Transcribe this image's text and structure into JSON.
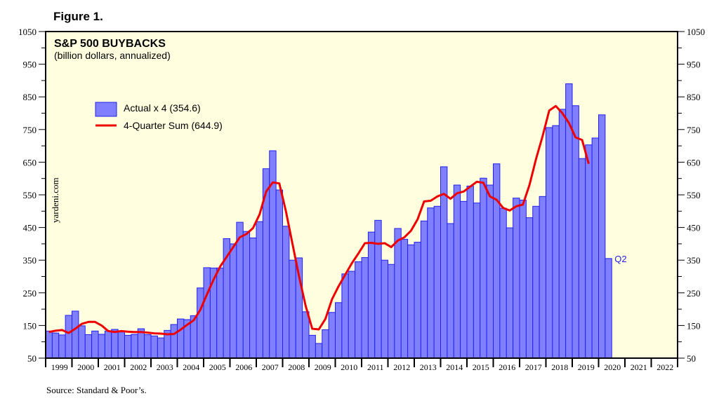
{
  "figure_label": "Figure 1.",
  "source": "Source: Standard & Poor’s.",
  "watermark": "yardeni.com",
  "colors": {
    "plot_bg": "#ffffe0",
    "bar_fill": "#8080ff",
    "bar_stroke": "#2222ee",
    "line": "#ee0000",
    "annotation": "#2222dd"
  },
  "chart_data": {
    "type": "bar",
    "title": "S&P 500 BUYBACKS",
    "subtitle": "(billion dollars, annualized)",
    "xlabel": "",
    "ylabel": "",
    "ylim": [
      50,
      1050
    ],
    "yticks": [
      50,
      150,
      250,
      350,
      450,
      550,
      650,
      750,
      850,
      950,
      1050
    ],
    "ytick_labels": [
      "50",
      "150",
      "250",
      "350",
      "450",
      "550",
      "650",
      "750",
      "850",
      "950",
      "1050"
    ],
    "x_years": [
      "1999",
      "2000",
      "2001",
      "2002",
      "2003",
      "2004",
      "2005",
      "2006",
      "2007",
      "2008",
      "2009",
      "2010",
      "2011",
      "2012",
      "2013",
      "2014",
      "2015",
      "2016",
      "2017",
      "2018",
      "2019",
      "2020",
      "2021",
      "2022"
    ],
    "grid": false,
    "legend": {
      "position": "top-left",
      "entries": [
        "Actual x 4 (354.6)",
        "4-Quarter Sum (644.9)"
      ]
    },
    "annotation": "Q2",
    "series": [
      {
        "name": "Actual x 4",
        "type": "bar",
        "start": "1999-Q1",
        "values": [
          133,
          127,
          121,
          181,
          194,
          149,
          122,
          133,
          123,
          133,
          138,
          130,
          120,
          123,
          140,
          122,
          118,
          112,
          135,
          153,
          170,
          168,
          180,
          265,
          327,
          326,
          326,
          416,
          400,
          466,
          438,
          418,
          468,
          630,
          685,
          565,
          454,
          350,
          357,
          192,
          120,
          95,
          137,
          190,
          220,
          308,
          316,
          345,
          358,
          436,
          472,
          350,
          337,
          447,
          414,
          397,
          405,
          470,
          510,
          515,
          636,
          462,
          580,
          530,
          577,
          525,
          601,
          580,
          645,
          509,
          449,
          540,
          534,
          480,
          515,
          545,
          756,
          762,
          812,
          890,
          823,
          661,
          703,
          724,
          795,
          355
        ]
      },
      {
        "name": "4-Quarter Sum",
        "type": "line",
        "start": "1999-Q1",
        "values": [
          130,
          134,
          136,
          127,
          140,
          155,
          161,
          161,
          150,
          133,
          130,
          133,
          131,
          130,
          130,
          128,
          126,
          125,
          123,
          124,
          137,
          152,
          166,
          198,
          245,
          290,
          330,
          360,
          390,
          420,
          430,
          448,
          490,
          560,
          588,
          585,
          500,
          400,
          300,
          210,
          140,
          138,
          170,
          230,
          270,
          305,
          340,
          370,
          402,
          403,
          400,
          402,
          390,
          410,
          420,
          440,
          475,
          530,
          532,
          545,
          553,
          538,
          555,
          560,
          575,
          590,
          587,
          545,
          535,
          510,
          502,
          515,
          520,
          580,
          660,
          730,
          808,
          822,
          800,
          770,
          726,
          718,
          645
        ]
      }
    ]
  }
}
